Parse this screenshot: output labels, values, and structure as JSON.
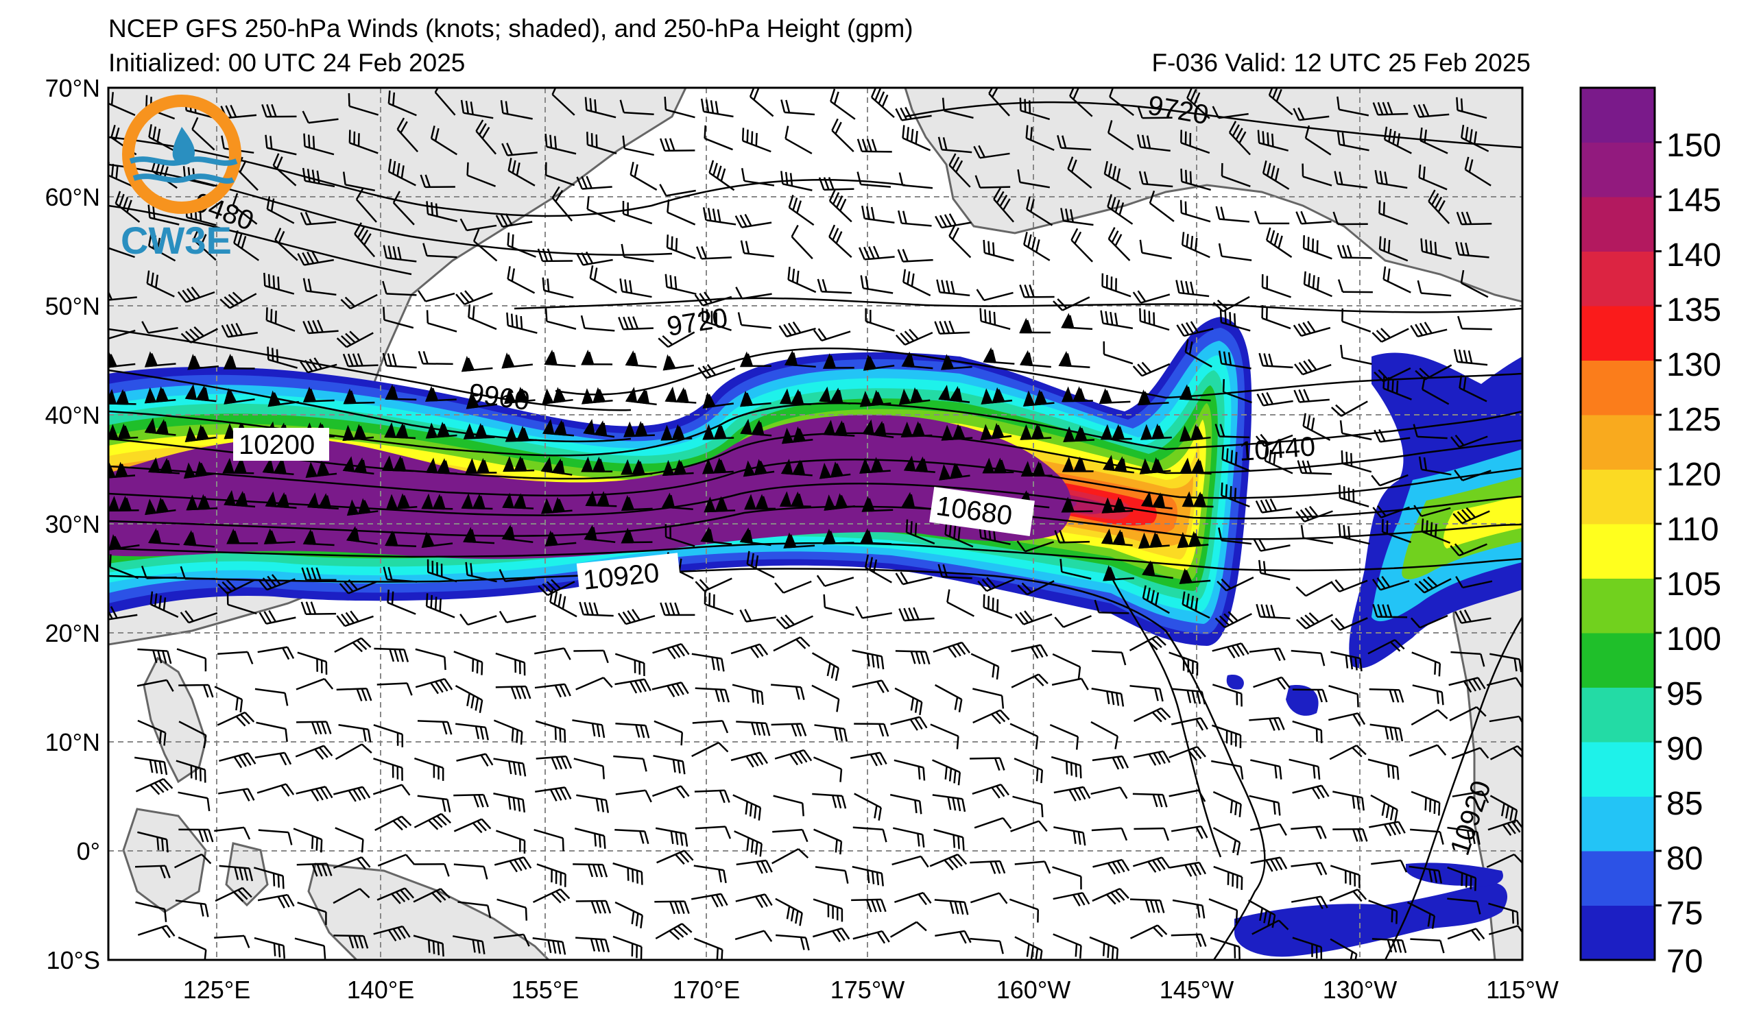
{
  "header": {
    "title": "NCEP GFS 250-hPa Winds (knots; shaded), and 250-hPa Height (gpm)",
    "initialized": "Initialized: 00 UTC 24 Feb 2025",
    "valid": "F-036  Valid: 12 UTC 25 Feb 2025"
  },
  "logo": {
    "text": "CW3E"
  },
  "axes": {
    "lat_labels": [
      "70°N",
      "60°N",
      "50°N",
      "40°N",
      "30°N",
      "20°N",
      "10°N",
      "0°",
      "10°S"
    ],
    "lon_labels": [
      "125°E",
      "140°E",
      "155°E",
      "170°E",
      "175°W",
      "160°W",
      "145°W",
      "130°W",
      "115°W"
    ]
  },
  "contour_labels": [
    "9720",
    "9720",
    "9480",
    "9960",
    "10200",
    "10440",
    "10680",
    "10920",
    "10920"
  ],
  "colorbar": {
    "ticks": [
      "150",
      "145",
      "140",
      "135",
      "130",
      "125",
      "120",
      "110",
      "105",
      "100",
      "95",
      "90",
      "85",
      "80",
      "75",
      "70"
    ],
    "colors": [
      "#1c1fc4",
      "#2c52e6",
      "#23c4f6",
      "#1ef2ea",
      "#23dba5",
      "#1fbf2a",
      "#71d11e",
      "#ffff1e",
      "#fbda23",
      "#f9aa1e",
      "#fb7d1b",
      "#fa1b1b",
      "#dc2442",
      "#b3195f",
      "#921a7e",
      "#7a1a8a"
    ]
  },
  "map": {
    "lat_range": [
      -10,
      70
    ],
    "lon_range": [
      110,
      245
    ]
  }
}
